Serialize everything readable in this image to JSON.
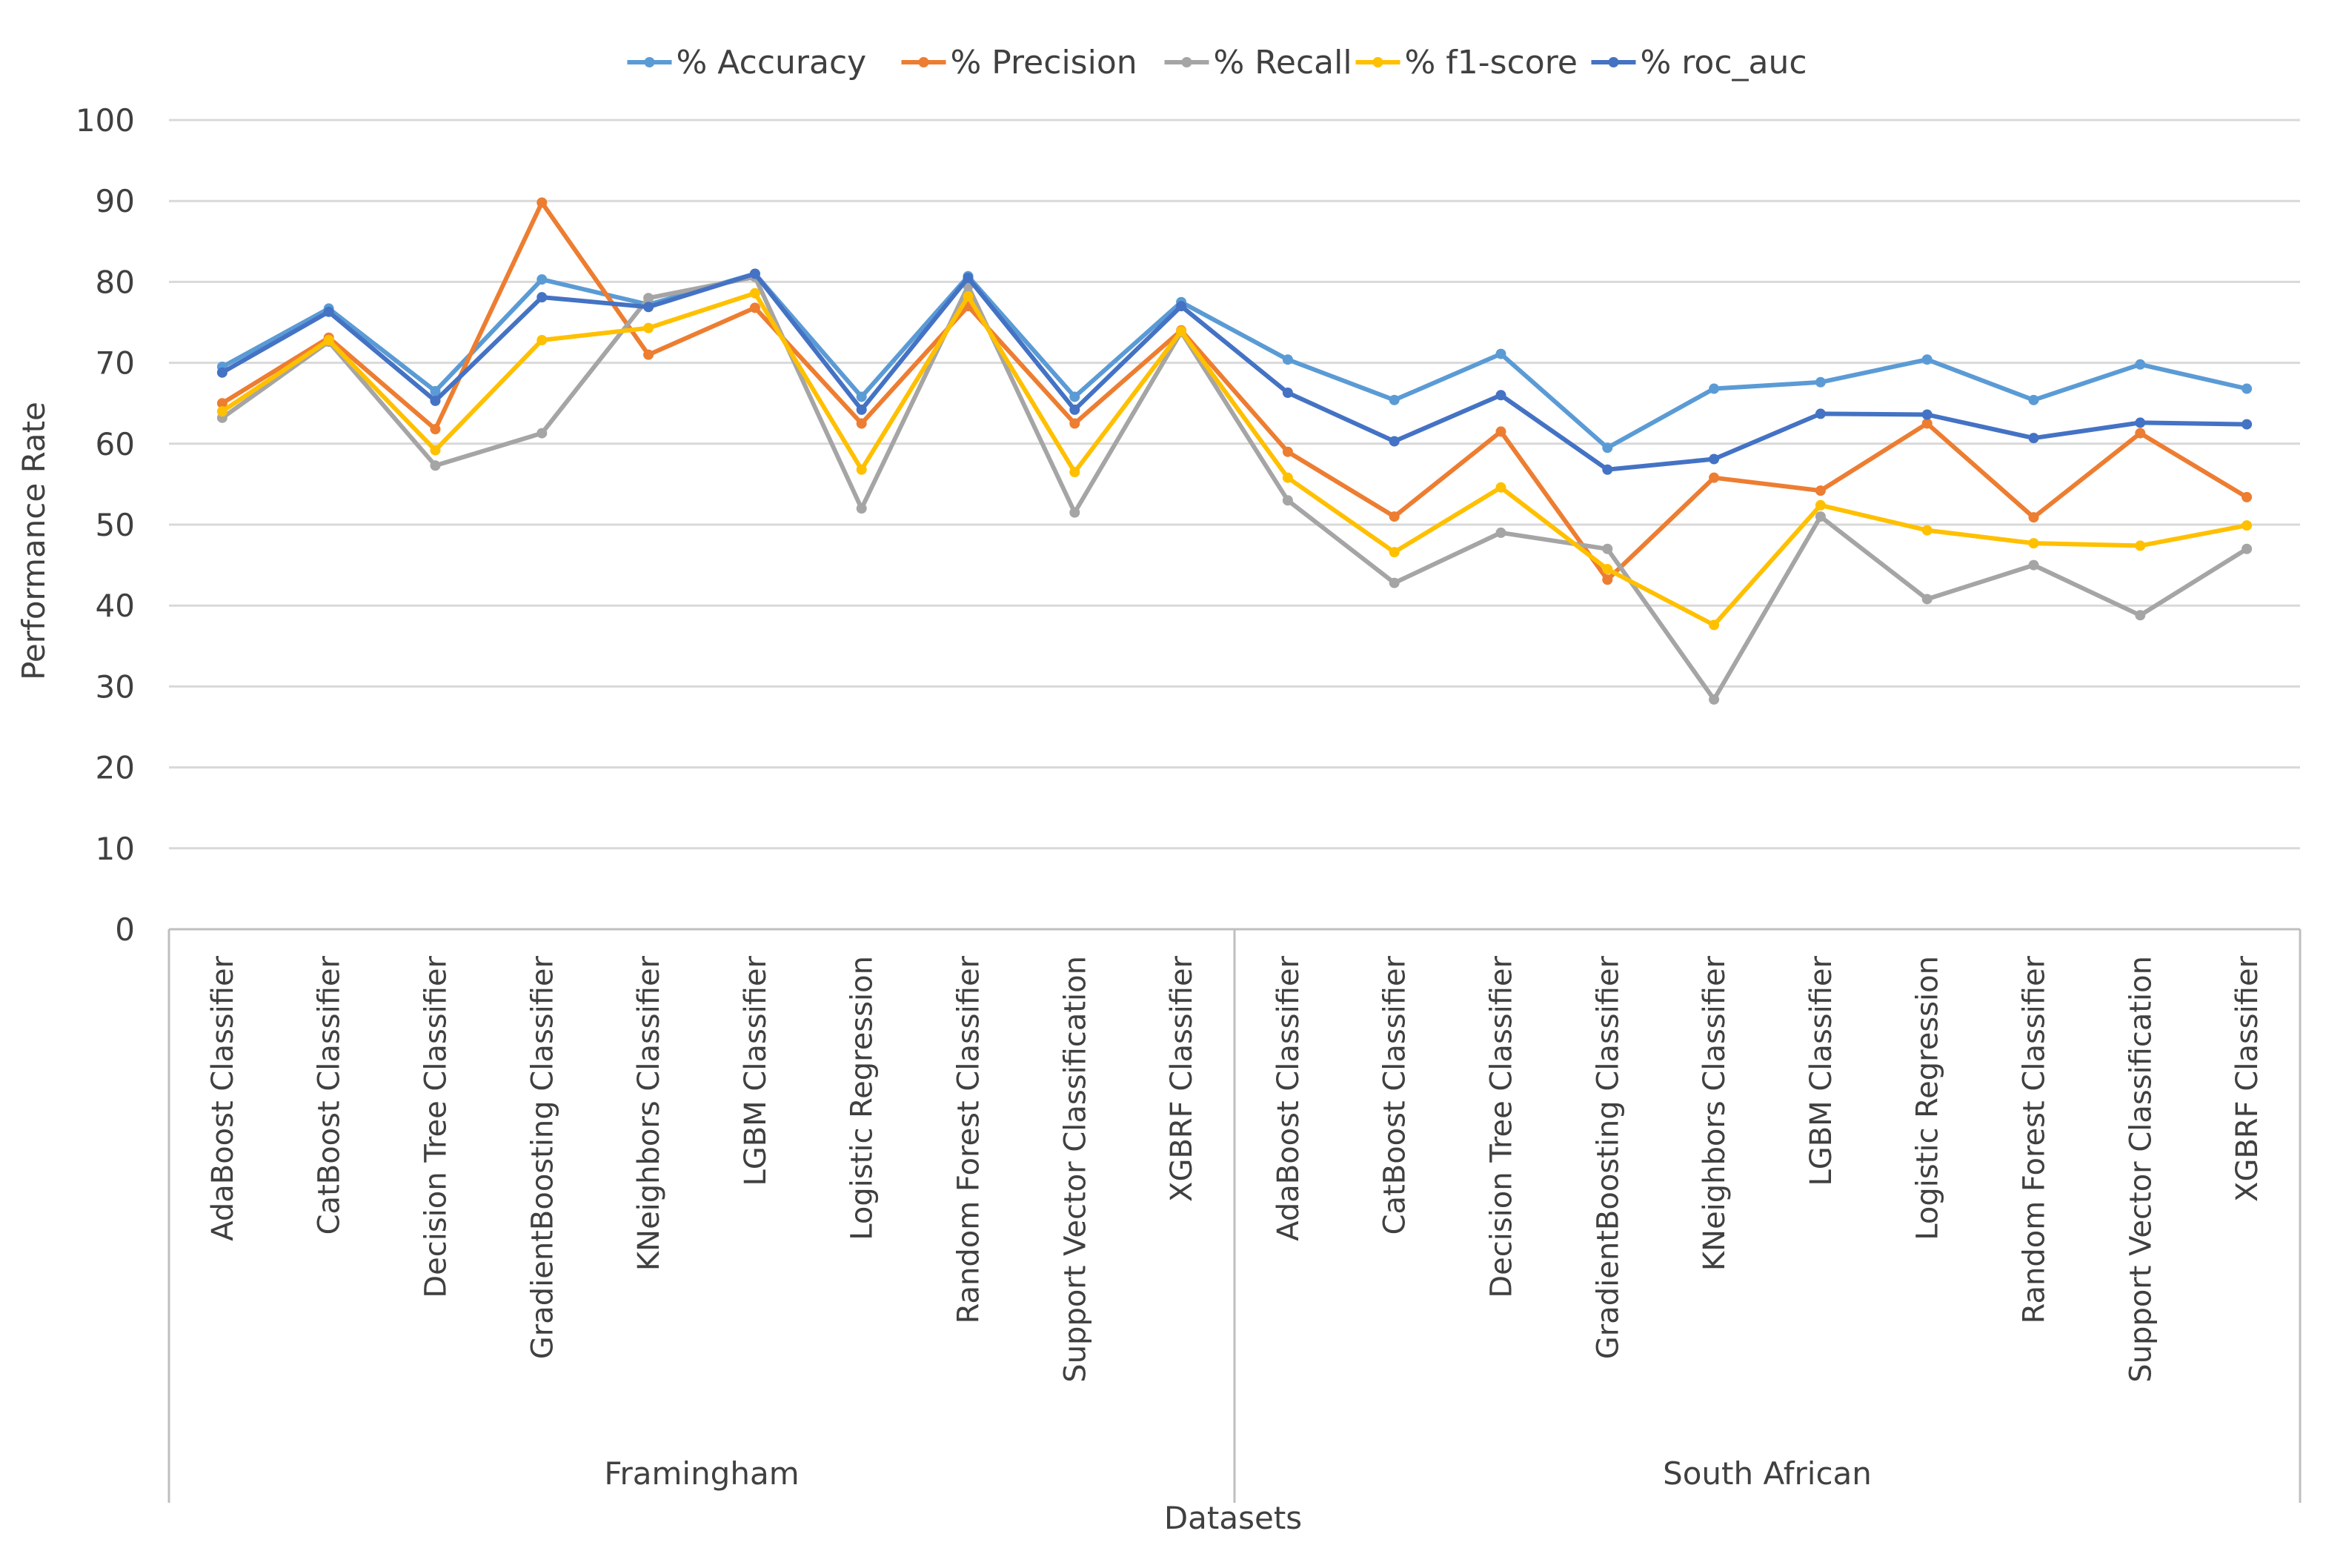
{
  "chart_data": {
    "type": "line",
    "title": "",
    "xlabel": "Datasets",
    "ylabel": "Performance Rate",
    "ylim": [
      0,
      100
    ],
    "yticks": [
      0,
      10,
      20,
      30,
      40,
      50,
      60,
      70,
      80,
      90,
      100
    ],
    "grid": true,
    "legend_position": "top",
    "groups": [
      {
        "name": "Framingham",
        "start": 0,
        "end": 9
      },
      {
        "name": "South African",
        "start": 10,
        "end": 19
      }
    ],
    "categories": [
      "AdaBoost Classifier",
      "CatBoost Classifier",
      "Decision Tree Classifier",
      "GradientBoosting Classifier",
      "KNeighbors Classifier",
      "LGBM Classifier",
      "Logistic Regression",
      "Random Forest Classifier",
      "Support Vector Classification",
      "XGBRF Classifier",
      "AdaBoost Classifier",
      "CatBoost Classifier",
      "Decision Tree Classifier",
      "GradientBoosting Classifier",
      "KNeighbors Classifier",
      "LGBM Classifier",
      "Logistic Regression",
      "Random Forest Classifier",
      "Support Vector Classification",
      "XGBRF Classifier"
    ],
    "series": [
      {
        "name": "% Accuracy",
        "color": "#5B9BD5",
        "values": [
          69.5,
          76.7,
          66.5,
          80.3,
          77.2,
          81.0,
          65.8,
          80.7,
          65.8,
          77.5,
          70.4,
          65.4,
          71.1,
          59.5,
          66.8,
          67.6,
          70.4,
          65.4,
          69.8,
          66.8
        ]
      },
      {
        "name": "% Precision",
        "color": "#ED7D31",
        "values": [
          65.0,
          73.1,
          61.8,
          89.8,
          71.0,
          76.8,
          62.5,
          77.0,
          62.5,
          74.0,
          59.0,
          51.0,
          61.5,
          43.2,
          55.8,
          54.2,
          62.5,
          50.9,
          61.3,
          53.4
        ]
      },
      {
        "name": "% Recall",
        "color": "#A5A5A5",
        "values": [
          63.2,
          72.6,
          57.3,
          61.3,
          78.0,
          80.6,
          52.0,
          79.5,
          51.5,
          73.8,
          53.0,
          42.8,
          49.0,
          47.0,
          28.4,
          51.0,
          40.8,
          45.0,
          38.8,
          47.0
        ]
      },
      {
        "name": "% f1-score",
        "color": "#FFC000",
        "values": [
          64.0,
          72.8,
          59.2,
          72.8,
          74.3,
          78.6,
          56.8,
          78.2,
          56.5,
          73.9,
          55.8,
          46.6,
          54.6,
          44.5,
          37.6,
          52.4,
          49.3,
          47.7,
          47.4,
          49.9
        ]
      },
      {
        "name": "% roc_auc",
        "color": "#4472C4",
        "values": [
          68.8,
          76.3,
          65.3,
          78.1,
          76.9,
          81.0,
          64.2,
          80.5,
          64.2,
          77.0,
          66.3,
          60.3,
          66.0,
          56.8,
          58.1,
          63.7,
          63.6,
          60.7,
          62.6,
          62.4
        ]
      }
    ]
  }
}
